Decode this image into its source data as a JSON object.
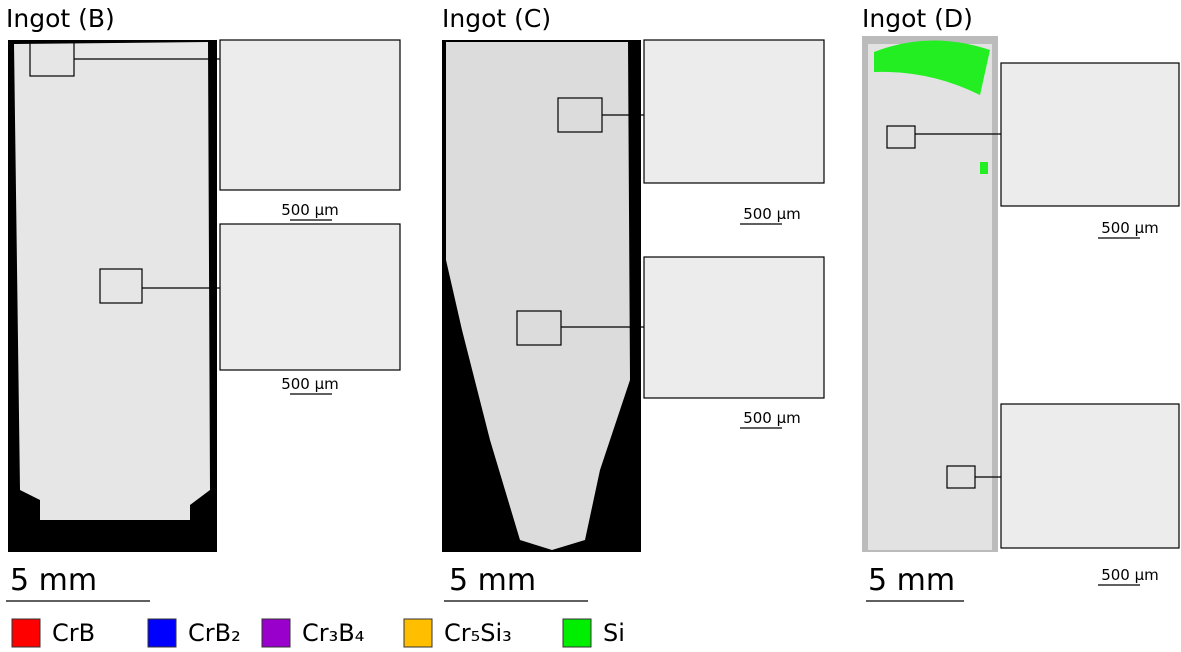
{
  "panels": [
    {
      "title": "Ingot (B)",
      "scale_main": "5 mm",
      "scale_insets": [
        "500 µm",
        "500 µm"
      ]
    },
    {
      "title": "Ingot (C)",
      "scale_main": "5 mm",
      "scale_insets": [
        "500 µm",
        "500 µm"
      ]
    },
    {
      "title": "Ingot (D)",
      "scale_main": "5 mm",
      "scale_insets": [
        "500 µm",
        "500 µm"
      ]
    }
  ],
  "legend": [
    {
      "label": "CrB",
      "color": "#ff0000"
    },
    {
      "label": "CrB₂",
      "color": "#0000ff"
    },
    {
      "label": "Cr₃B₄",
      "color": "#9900cc"
    },
    {
      "label": "Cr₅Si₃",
      "color": "#ffbf00"
    },
    {
      "label": "Si",
      "color": "#00ee00"
    }
  ]
}
